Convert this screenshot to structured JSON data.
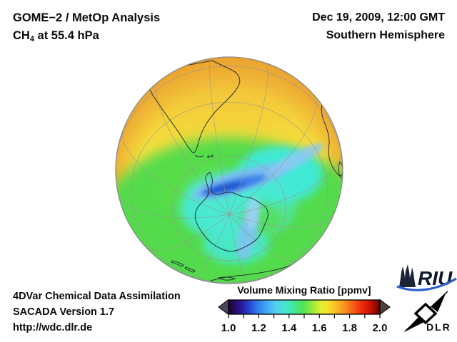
{
  "header": {
    "product": "GOME−2 / MetOp Analysis",
    "species_prefix": "CH",
    "species_sub": "4",
    "level": " at 55.4 hPa",
    "datetime": "Dec 19, 2009, 12:00 GMT",
    "hemisphere": "Southern Hemisphere"
  },
  "footer": {
    "line1": "4DVar Chemical Data Assimilation",
    "line2": "SACADA Version 1.7",
    "line3": "http://wdc.dlr.de"
  },
  "colorbar": {
    "title": "Volume Mixing Ratio [ppmv]",
    "min": 1.0,
    "max": 2.0,
    "ticks": [
      "1.0",
      "1.2",
      "1.4",
      "1.6",
      "1.8",
      "2.0"
    ],
    "minor_tick_count": 11,
    "gradient": [
      [
        "0%",
        "#150426"
      ],
      [
        "4%",
        "#2b0a66"
      ],
      [
        "9%",
        "#2a1a9e"
      ],
      [
        "14%",
        "#2746d6"
      ],
      [
        "19%",
        "#2f7bed"
      ],
      [
        "25%",
        "#3fa8f5"
      ],
      [
        "31%",
        "#55cdf2"
      ],
      [
        "37%",
        "#47e6d4"
      ],
      [
        "43%",
        "#43e99b"
      ],
      [
        "49%",
        "#4fe157"
      ],
      [
        "55%",
        "#8fe93c"
      ],
      [
        "61%",
        "#dff133"
      ],
      [
        "65%",
        "#f6e22c"
      ],
      [
        "71%",
        "#f7bd27"
      ],
      [
        "77%",
        "#f78f1e"
      ],
      [
        "83%",
        "#f55813"
      ],
      [
        "88%",
        "#ee2a0d"
      ],
      [
        "93%",
        "#cf1407"
      ],
      [
        "97%",
        "#970a04"
      ],
      [
        "100%",
        "#5a0502"
      ]
    ],
    "left_arrow_color": "#4a4558",
    "right_arrow_color": "#51403c"
  },
  "logos": {
    "riu_label": "RIU",
    "dlr_label": "DLR",
    "riu_blue": "#2e5fcc",
    "riu_text_color": "#121a30"
  },
  "chart_data": {
    "type": "heatmap",
    "title": "CH4 volume mixing ratio at 55.4 hPa, Southern Hemisphere, orthographic globe",
    "colorbar_label": "Volume Mixing Ratio [ppmv]",
    "range_ppmv": [
      1.0,
      2.0
    ],
    "tick_labels": [
      "1.0",
      "1.2",
      "1.4",
      "1.6",
      "1.8",
      "2.0"
    ],
    "field_summary": [
      {
        "region": "tropics / globe rim (yellow-orange)",
        "value_ppmv": 1.65
      },
      {
        "region": "southern mid-latitudes (green)",
        "value_ppmv": 1.48
      },
      {
        "region": "polar collar / Antarctic coast (cyan)",
        "value_ppmv": 1.33
      },
      {
        "region": "vortex filament band north of Antarctica (blue)",
        "value_ppmv": 1.12
      }
    ],
    "map_colors": {
      "rim_orange": "#efae39",
      "yellow": "#f6e13b",
      "green": "#53db4b",
      "cyan": "#43e9d2",
      "light_blue": "#7cbef2",
      "deep_blue": "#1d55ce"
    }
  }
}
